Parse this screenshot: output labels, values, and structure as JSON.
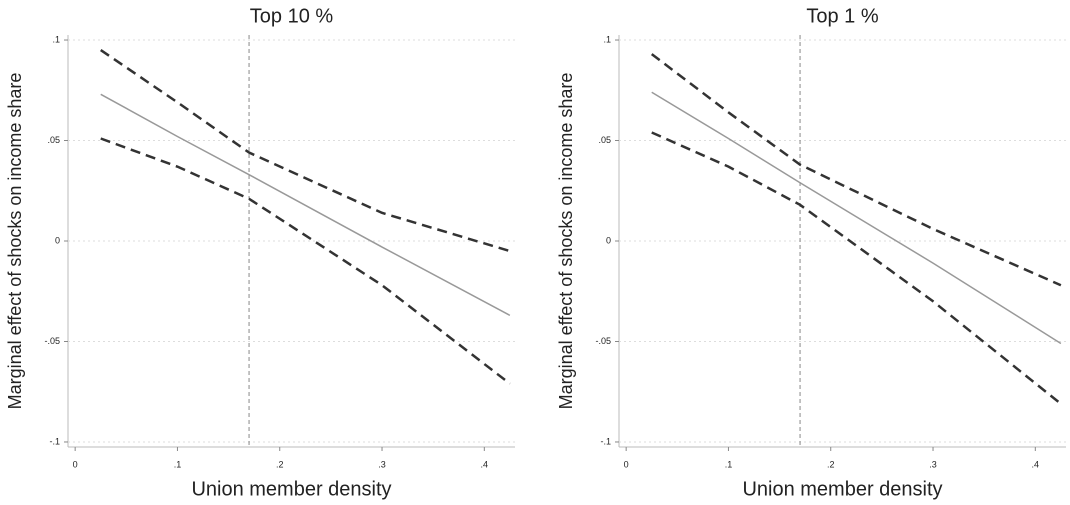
{
  "chart_data": [
    {
      "type": "line",
      "title": "Top 10 %",
      "xlabel": "Union member density",
      "ylabel": "Marginal effect of shocks on income share",
      "x": [
        0.025,
        0.1,
        0.17,
        0.3,
        0.425
      ],
      "series": [
        {
          "color": "#999999",
          "style": "solid",
          "values": [
            0.073,
            0.052,
            0.033,
            -0.003,
            -0.037
          ]
        },
        {
          "color": "#333333",
          "style": "dashed",
          "values": [
            0.095,
            0.069,
            0.044,
            0.014,
            -0.005
          ]
        },
        {
          "color": "#333333",
          "style": "dashed",
          "values": [
            0.051,
            0.037,
            0.021,
            -0.022,
            -0.071
          ]
        }
      ],
      "xline": 0.17,
      "xlim": [
        -0.007,
        0.43
      ],
      "ylim": [
        -0.1025,
        0.1025
      ],
      "xticks": [
        0,
        {
          "value": 0.1,
          "label": ".1"
        },
        {
          "value": 0.2,
          "label": ".2"
        },
        {
          "value": 0.3,
          "label": ".3"
        },
        {
          "value": 0.4,
          "label": ".4"
        }
      ],
      "yticks": [
        {
          "value": -0.1,
          "label": "-.1"
        },
        {
          "value": -0.05,
          "label": "-.05"
        },
        0,
        {
          "value": 0.05,
          "label": ".05"
        },
        {
          "value": 0.1,
          "label": ".1"
        }
      ],
      "grid": true
    },
    {
      "type": "line",
      "title": "Top 1 %",
      "xlabel": "Union member density",
      "ylabel": "Marginal effect of shocks on income share",
      "x": [
        0.025,
        0.1,
        0.17,
        0.3,
        0.425
      ],
      "series": [
        {
          "color": "#999999",
          "style": "solid",
          "values": [
            0.074,
            0.051,
            0.029,
            -0.011,
            -0.051
          ]
        },
        {
          "color": "#333333",
          "style": "dashed",
          "values": [
            0.093,
            0.064,
            0.038,
            0.006,
            -0.022
          ]
        },
        {
          "color": "#333333",
          "style": "dashed",
          "values": [
            0.054,
            0.037,
            0.018,
            -0.03,
            -0.081
          ]
        }
      ],
      "xline": 0.17,
      "xlim": [
        -0.007,
        0.43
      ],
      "ylim": [
        -0.1025,
        0.1025
      ],
      "xticks": [
        0,
        {
          "value": 0.1,
          "label": ".1"
        },
        {
          "value": 0.2,
          "label": ".2"
        },
        {
          "value": 0.3,
          "label": ".3"
        },
        {
          "value": 0.4,
          "label": ".4"
        }
      ],
      "yticks": [
        {
          "value": -0.1,
          "label": "-.1"
        },
        {
          "value": -0.05,
          "label": "-.05"
        },
        0,
        {
          "value": 0.05,
          "label": ".05"
        },
        {
          "value": 0.1,
          "label": ".1"
        }
      ],
      "grid": true
    }
  ]
}
